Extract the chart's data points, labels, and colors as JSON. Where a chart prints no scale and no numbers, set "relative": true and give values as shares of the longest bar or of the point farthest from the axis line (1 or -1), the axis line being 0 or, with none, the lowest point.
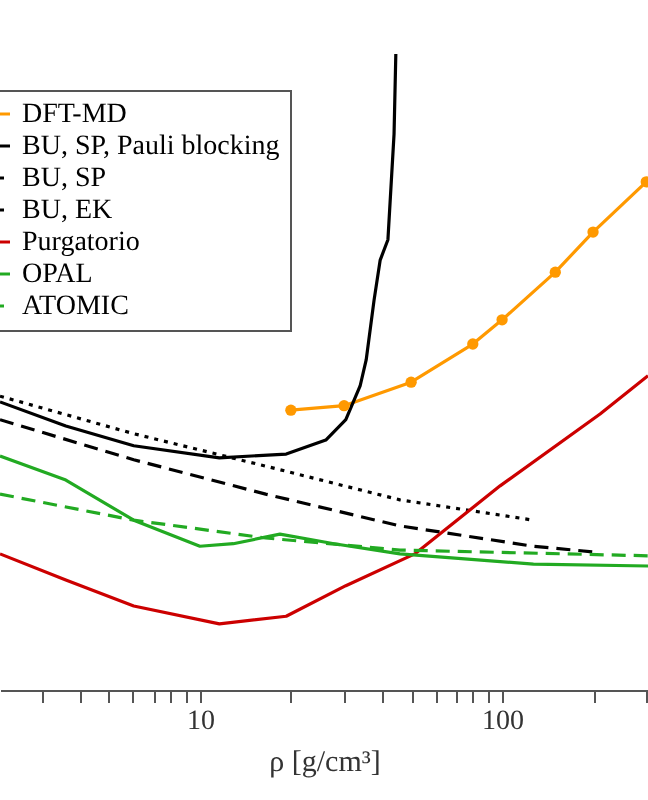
{
  "chart_data": {
    "type": "line",
    "relative": true,
    "xlabel": "ρ [g/cm³]",
    "log": "x",
    "legend": "top left",
    "grid": false,
    "xlim": [
      2.18,
      304
    ],
    "xticks": [
      {
        "value": 3,
        "label": null
      },
      {
        "value": 4,
        "label": null
      },
      {
        "value": 5,
        "label": null
      },
      {
        "value": 6,
        "label": null
      },
      {
        "value": 7,
        "label": null
      },
      {
        "value": 8,
        "label": null
      },
      {
        "value": 9,
        "label": null
      },
      10,
      {
        "value": 20,
        "label": null
      },
      {
        "value": 30,
        "label": null
      },
      {
        "value": 40,
        "label": null
      },
      {
        "value": 50,
        "label": null
      },
      {
        "value": 60,
        "label": null
      },
      {
        "value": 70,
        "label": null
      },
      {
        "value": 80,
        "label": null
      },
      {
        "value": 90,
        "label": null
      },
      100,
      {
        "value": 200,
        "label": null
      },
      {
        "value": 300,
        "label": null
      }
    ],
    "series": [
      {
        "name": "DFT-MD",
        "color": "#ff9900",
        "marker": "circle",
        "line_style": "solid",
        "x": [
          20,
          30,
          50,
          80,
          100,
          150,
          200,
          300
        ],
        "values": [
          0.44,
          0.447,
          0.484,
          0.544,
          0.582,
          0.657,
          0.72,
          0.799
        ]
      },
      {
        "name": "BU, SP, Pauli blocking",
        "color": "#000000",
        "line_style": "solid",
        "x": [
          2.18,
          3.6,
          6.04,
          11.6,
          19.3,
          26.1,
          30.4,
          33.9,
          35.5,
          37.7,
          39.5,
          41.9,
          43.9,
          44.5
        ],
        "values": [
          0.453,
          0.415,
          0.384,
          0.365,
          0.371,
          0.393,
          0.425,
          0.478,
          0.519,
          0.613,
          0.676,
          0.708,
          0.874,
          1
        ]
      },
      {
        "name": "BU, SP",
        "color": "#000000",
        "line_style": "dashed",
        "x": [
          2.18,
          6.04,
          16.5,
          45.9,
          127,
          202
        ],
        "values": [
          0.425,
          0.362,
          0.308,
          0.258,
          0.226,
          0.217
        ]
      },
      {
        "name": "BU, EK",
        "color": "#000000",
        "line_style": "dotted",
        "x": [
          2.18,
          6.04,
          16.5,
          45.9,
          127
        ],
        "values": [
          0.462,
          0.403,
          0.352,
          0.299,
          0.267
        ]
      },
      {
        "name": "Purgatorio",
        "color": "#cc0000",
        "line_style": "solid",
        "x": [
          2.18,
          3.6,
          6.04,
          11.6,
          19.3,
          30.4,
          51.4,
          98.5,
          211,
          304
        ],
        "values": [
          0.214,
          0.173,
          0.132,
          0.104,
          0.116,
          0.164,
          0.214,
          0.321,
          0.434,
          0.494
        ]
      },
      {
        "name": "OPAL",
        "color": "#22aa22",
        "line_style": "solid",
        "x": [
          2.18,
          3.6,
          6.04,
          10,
          12.9,
          18.4,
          27.8,
          45.9,
          127,
          304
        ],
        "values": [
          0.368,
          0.33,
          0.267,
          0.226,
          0.23,
          0.245,
          0.23,
          0.214,
          0.198,
          0.195
        ]
      },
      {
        "name": "ATOMIC",
        "color": "#22aa22",
        "line_style": "dashed",
        "x": [
          2.18,
          6.04,
          16.5,
          45.9,
          304
        ],
        "values": [
          0.308,
          0.267,
          0.239,
          0.22,
          0.211
        ]
      }
    ]
  }
}
